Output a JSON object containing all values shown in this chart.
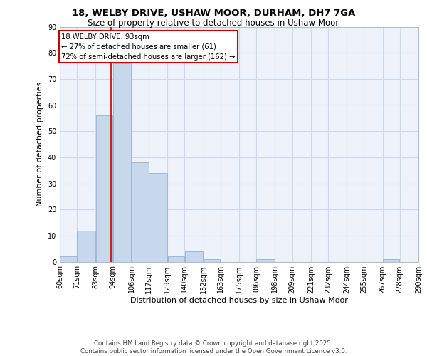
{
  "title_line1": "18, WELBY DRIVE, USHAW MOOR, DURHAM, DH7 7GA",
  "title_line2": "Size of property relative to detached houses in Ushaw Moor",
  "xlabel": "Distribution of detached houses by size in Ushaw Moor",
  "ylabel": "Number of detached properties",
  "bins": [
    60,
    71,
    83,
    94,
    106,
    117,
    129,
    140,
    152,
    163,
    175,
    186,
    198,
    209,
    221,
    232,
    244,
    255,
    267,
    278,
    290
  ],
  "counts": [
    2,
    12,
    56,
    76,
    38,
    34,
    2,
    4,
    1,
    0,
    0,
    1,
    0,
    0,
    0,
    0,
    0,
    0,
    1,
    0
  ],
  "bar_color": "#c8d8ec",
  "bar_edgecolor": "#a0b8d0",
  "property_size": 93,
  "vline_color": "#cc0000",
  "annotation_text": "18 WELBY DRIVE: 93sqm\n← 27% of detached houses are smaller (61)\n72% of semi-detached houses are larger (162) →",
  "annotation_box_color": "#ffffff",
  "annotation_box_edgecolor": "#cc0000",
  "ylim": [
    0,
    90
  ],
  "yticks": [
    0,
    10,
    20,
    30,
    40,
    50,
    60,
    70,
    80,
    90
  ],
  "grid_color": "#d0d8ec",
  "background_color": "#eef2fa",
  "footer_text": "Contains HM Land Registry data © Crown copyright and database right 2025.\nContains public sector information licensed under the Open Government Licence v3.0.",
  "tick_labels": [
    "60sqm",
    "71sqm",
    "83sqm",
    "94sqm",
    "106sqm",
    "117sqm",
    "129sqm",
    "140sqm",
    "152sqm",
    "163sqm",
    "175sqm",
    "186sqm",
    "198sqm",
    "209sqm",
    "221sqm",
    "232sqm",
    "244sqm",
    "255sqm",
    "267sqm",
    "278sqm",
    "290sqm"
  ]
}
